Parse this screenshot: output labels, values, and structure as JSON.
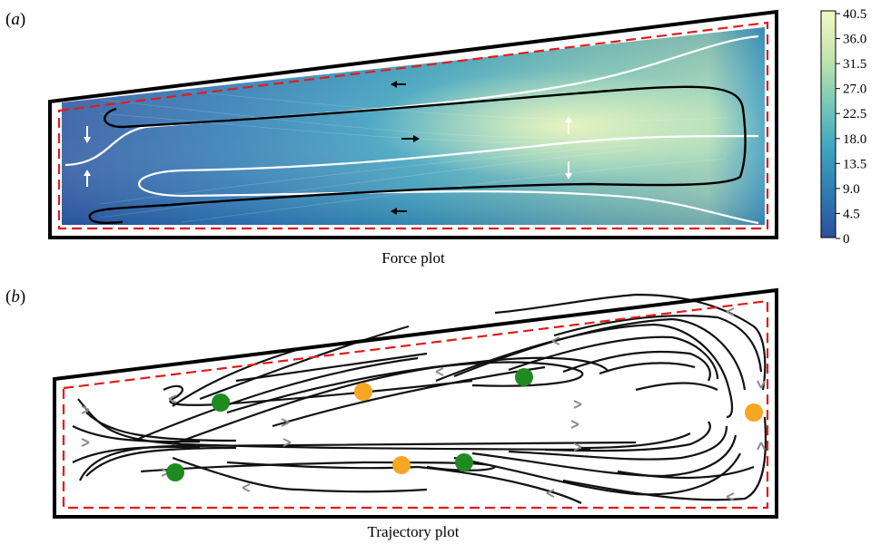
{
  "figure": {
    "panel_a": {
      "label_open": "(",
      "label_letter": "a",
      "label_close": ")",
      "caption": "Force plot"
    },
    "panel_b": {
      "label_open": "(",
      "label_letter": "b",
      "label_close": ")",
      "caption": "Trajectory plot"
    }
  },
  "colorbar": {
    "ticks": [
      "40.5",
      "36.0",
      "31.5",
      "27.0",
      "22.5",
      "18.0",
      "13.5",
      "9.0",
      "4.5",
      "0"
    ],
    "colors": [
      "#2c4f9c",
      "#2f7cb3",
      "#3fa6be",
      "#7ccab7",
      "#c4e6ad",
      "#f3f9c2"
    ]
  },
  "colors": {
    "boundary": "#000000",
    "dashed_boundary": "#e01c1c",
    "particle_green": "#1f8a1f",
    "particle_orange": "#f6a623",
    "arrow_gray": "#8c8c8c"
  }
}
